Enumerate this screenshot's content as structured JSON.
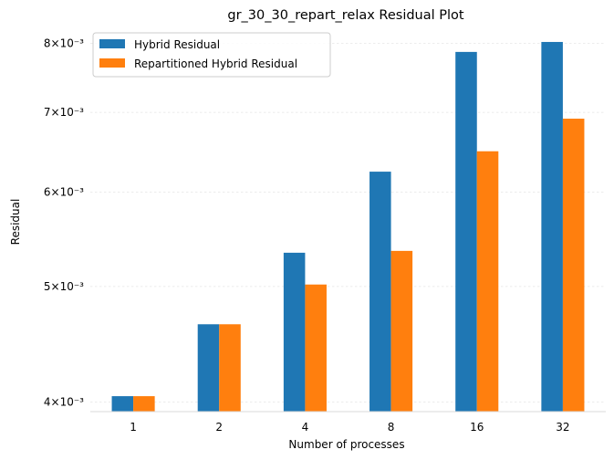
{
  "chart_data": {
    "type": "bar",
    "title": "gr_30_30_repart_relax Residual Plot",
    "xlabel": "Number of processes",
    "ylabel": "Residual",
    "categories": [
      "1",
      "2",
      "4",
      "8",
      "16",
      "32"
    ],
    "series": [
      {
        "name": "Hybrid Residual",
        "color": "#1f77b4",
        "values": [
          0.004045,
          0.004648,
          0.005337,
          0.006242,
          0.007867,
          0.00802
        ]
      },
      {
        "name": "Repartitioned Hybrid Residual",
        "color": "#ff7f0e",
        "values": [
          0.004045,
          0.004648,
          0.005019,
          0.005356,
          0.006493,
          0.006915
        ]
      }
    ],
    "y_scale": "log",
    "ylim": [
      0.003926,
      0.00822
    ],
    "yticks": [
      {
        "value": 0.004,
        "label": "4×10⁻³"
      },
      {
        "value": 0.005,
        "label": "5×10⁻³"
      },
      {
        "value": 0.006,
        "label": "6×10⁻³"
      },
      {
        "value": 0.007,
        "label": "7×10⁻³"
      },
      {
        "value": 0.008,
        "label": "8×10⁻³"
      }
    ],
    "grid": true,
    "legend_position": "top-left"
  }
}
